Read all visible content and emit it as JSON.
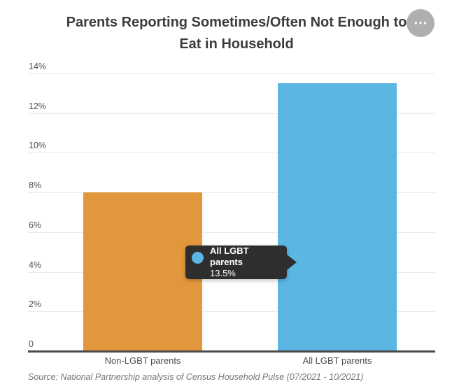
{
  "header": {
    "title_line1": "Parents Reporting Sometimes/Often Not Enough to",
    "title_line2": "Eat in Household",
    "menu_icon": "⋯"
  },
  "chart_data": {
    "type": "bar",
    "title": "Parents Reporting Sometimes/Often Not Enough to Eat in Household",
    "categories": [
      "Non-LGBT parents",
      "All LGBT parents"
    ],
    "values": [
      8.0,
      13.5
    ],
    "bar_colors": [
      "#e2973c",
      "#5bb6e4"
    ],
    "ylim": [
      0,
      14
    ],
    "yticks": [
      {
        "label": "14%",
        "value": 14
      },
      {
        "label": "12%",
        "value": 12
      },
      {
        "label": "10%",
        "value": 10
      },
      {
        "label": "8%",
        "value": 8
      },
      {
        "label": "6%",
        "value": 6
      },
      {
        "label": "4%",
        "value": 4
      },
      {
        "label": "2%",
        "value": 2
      },
      {
        "label": "0",
        "value": 0
      }
    ],
    "grid": true,
    "xlabel": "",
    "ylabel": ""
  },
  "tooltip": {
    "series_label": "All LGBT parents",
    "value_label": "13.5%",
    "dot_color": "#5bb6e4",
    "background": "#2e2e2e"
  },
  "footer": {
    "source": "Source: National Partnership analysis of Census Household Pulse (07/2021 - 10/2021)"
  },
  "colors": {
    "title": "#3c3c3c",
    "axis_text": "#4d4d4d",
    "gridline": "#e9e9e9",
    "baseline": "#4a4a4a"
  }
}
